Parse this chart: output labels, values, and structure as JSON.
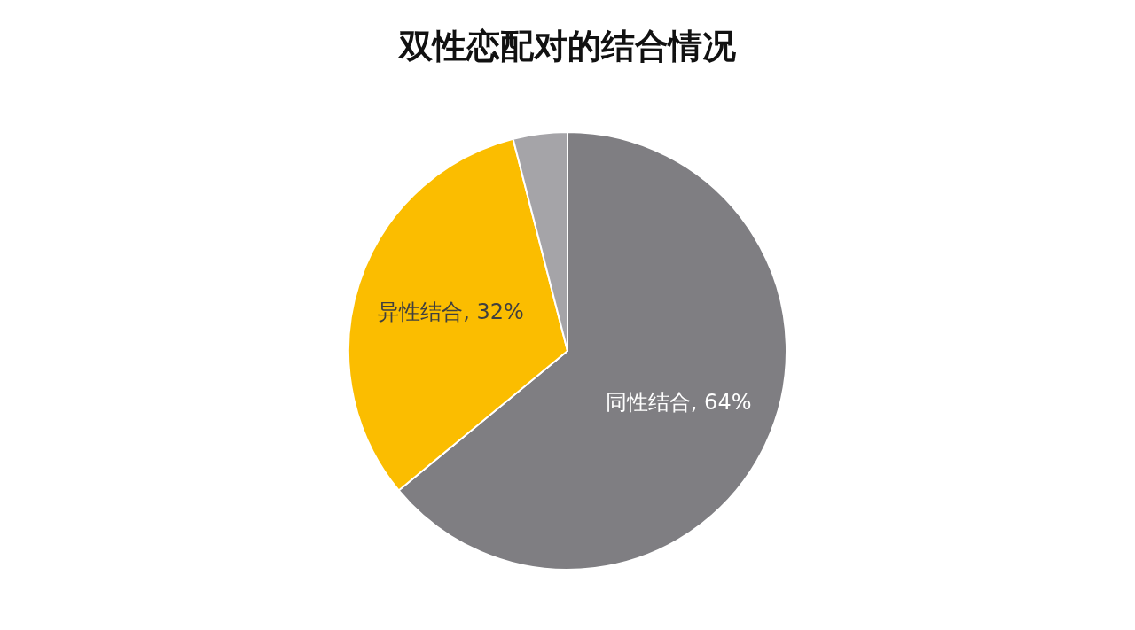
{
  "chart_data": {
    "type": "pie",
    "title": "双性恋配对的结合情况",
    "categories": [
      "同性结合",
      "异性结合",
      null
    ],
    "values": [
      64,
      32,
      4
    ],
    "value_labels": [
      "64%",
      "32%",
      null
    ],
    "colors": [
      "#7f7e82",
      "#fbbd00",
      "#a5a4a8"
    ],
    "legend": false
  }
}
